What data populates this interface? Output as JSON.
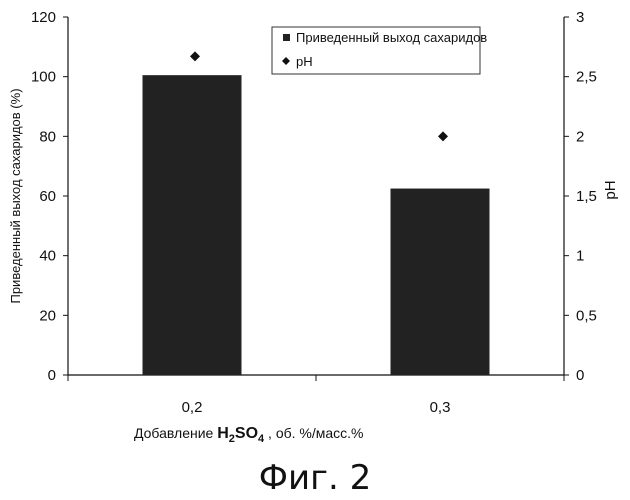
{
  "chart_data": {
    "type": "bar",
    "categories": [
      "0,2",
      "0,3"
    ],
    "series": [
      {
        "name": "Приведенный выход сахаридов",
        "kind": "bar",
        "axis": "left",
        "values": [
          100.5,
          62.5
        ],
        "color": "#222222"
      },
      {
        "name": "pH",
        "kind": "scatter",
        "axis": "right",
        "values": [
          2.67,
          2.0
        ],
        "color": "#111111"
      }
    ],
    "ylabel": "Приведенный выход сахаридов (%)",
    "y2label": "pH",
    "ylim": [
      0,
      120
    ],
    "y2lim": [
      0,
      3
    ],
    "yticks": [
      "0",
      "20",
      "40",
      "60",
      "80",
      "100",
      "120"
    ],
    "y2ticks": [
      "0",
      "0,5",
      "1",
      "1,5",
      "2",
      "2,5",
      "3"
    ],
    "legend_position": "top-right",
    "grid": false
  },
  "xlabel": {
    "prefix": "Добавление",
    "chem_main": "H",
    "chem_sub1": "2",
    "chem_mid": "SO",
    "chem_sub2": "4",
    "suffix": ", об. %/масс.%"
  },
  "caption": "Фиг. 2"
}
